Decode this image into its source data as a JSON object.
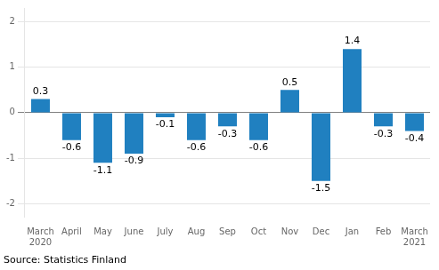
{
  "chart_data": {
    "type": "bar",
    "categories": [
      "March\n2020",
      "April",
      "May",
      "June",
      "July",
      "Aug",
      "Sep",
      "Oct",
      "Nov",
      "Dec",
      "Jan",
      "Feb",
      "March\n2021"
    ],
    "values": [
      0.3,
      -0.6,
      -1.1,
      -0.9,
      -0.1,
      -0.6,
      -0.3,
      -0.6,
      0.5,
      -1.5,
      1.4,
      -0.3,
      -0.4
    ],
    "color": "#2080c0",
    "ylim": [
      -2.3,
      2.3
    ],
    "yticks": [
      -2,
      -1,
      0,
      1,
      2
    ],
    "grid": true,
    "data_labels": true,
    "annotations": [
      "Source: Statistics Finland"
    ]
  }
}
